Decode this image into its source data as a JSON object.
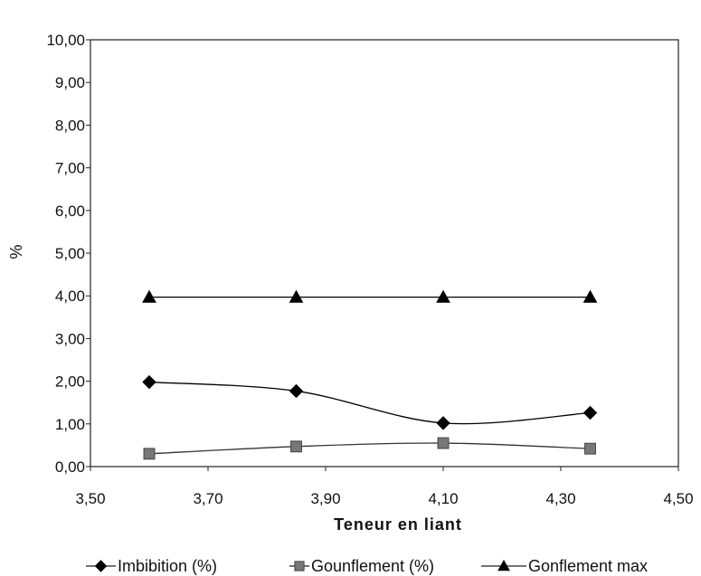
{
  "chart_data": {
    "type": "line",
    "title": "",
    "xlabel": "Teneur en liant",
    "ylabel": "%",
    "xlim": [
      3.5,
      4.5
    ],
    "ylim": [
      0,
      10
    ],
    "x_ticks": [
      "3,50",
      "3,70",
      "3,90",
      "4,10",
      "4,30",
      "4,50"
    ],
    "y_ticks": [
      "0,00",
      "1,00",
      "2,00",
      "3,00",
      "4,00",
      "5,00",
      "6,00",
      "7,00",
      "8,00",
      "9,00",
      "10,00"
    ],
    "x_tick_values": [
      3.5,
      3.7,
      3.9,
      4.1,
      4.3,
      4.5
    ],
    "y_tick_values": [
      0,
      1,
      2,
      3,
      4,
      5,
      6,
      7,
      8,
      9,
      10
    ],
    "grid": false,
    "legend_position": "bottom",
    "x": [
      3.6,
      3.85,
      4.1,
      4.35
    ],
    "series": [
      {
        "name": "Imbibition (%)",
        "values": [
          1.98,
          1.77,
          1.02,
          1.26
        ],
        "marker": "diamond",
        "color": "#000000",
        "smooth": true
      },
      {
        "name": "Gounflement (%)",
        "values": [
          0.3,
          0.47,
          0.55,
          0.42
        ],
        "marker": "square",
        "color": "#777777",
        "smooth": true
      },
      {
        "name": "Gonflement max",
        "values": [
          3.97,
          3.97,
          3.97,
          3.97
        ],
        "marker": "triangle",
        "color": "#000000",
        "smooth": false
      }
    ]
  }
}
